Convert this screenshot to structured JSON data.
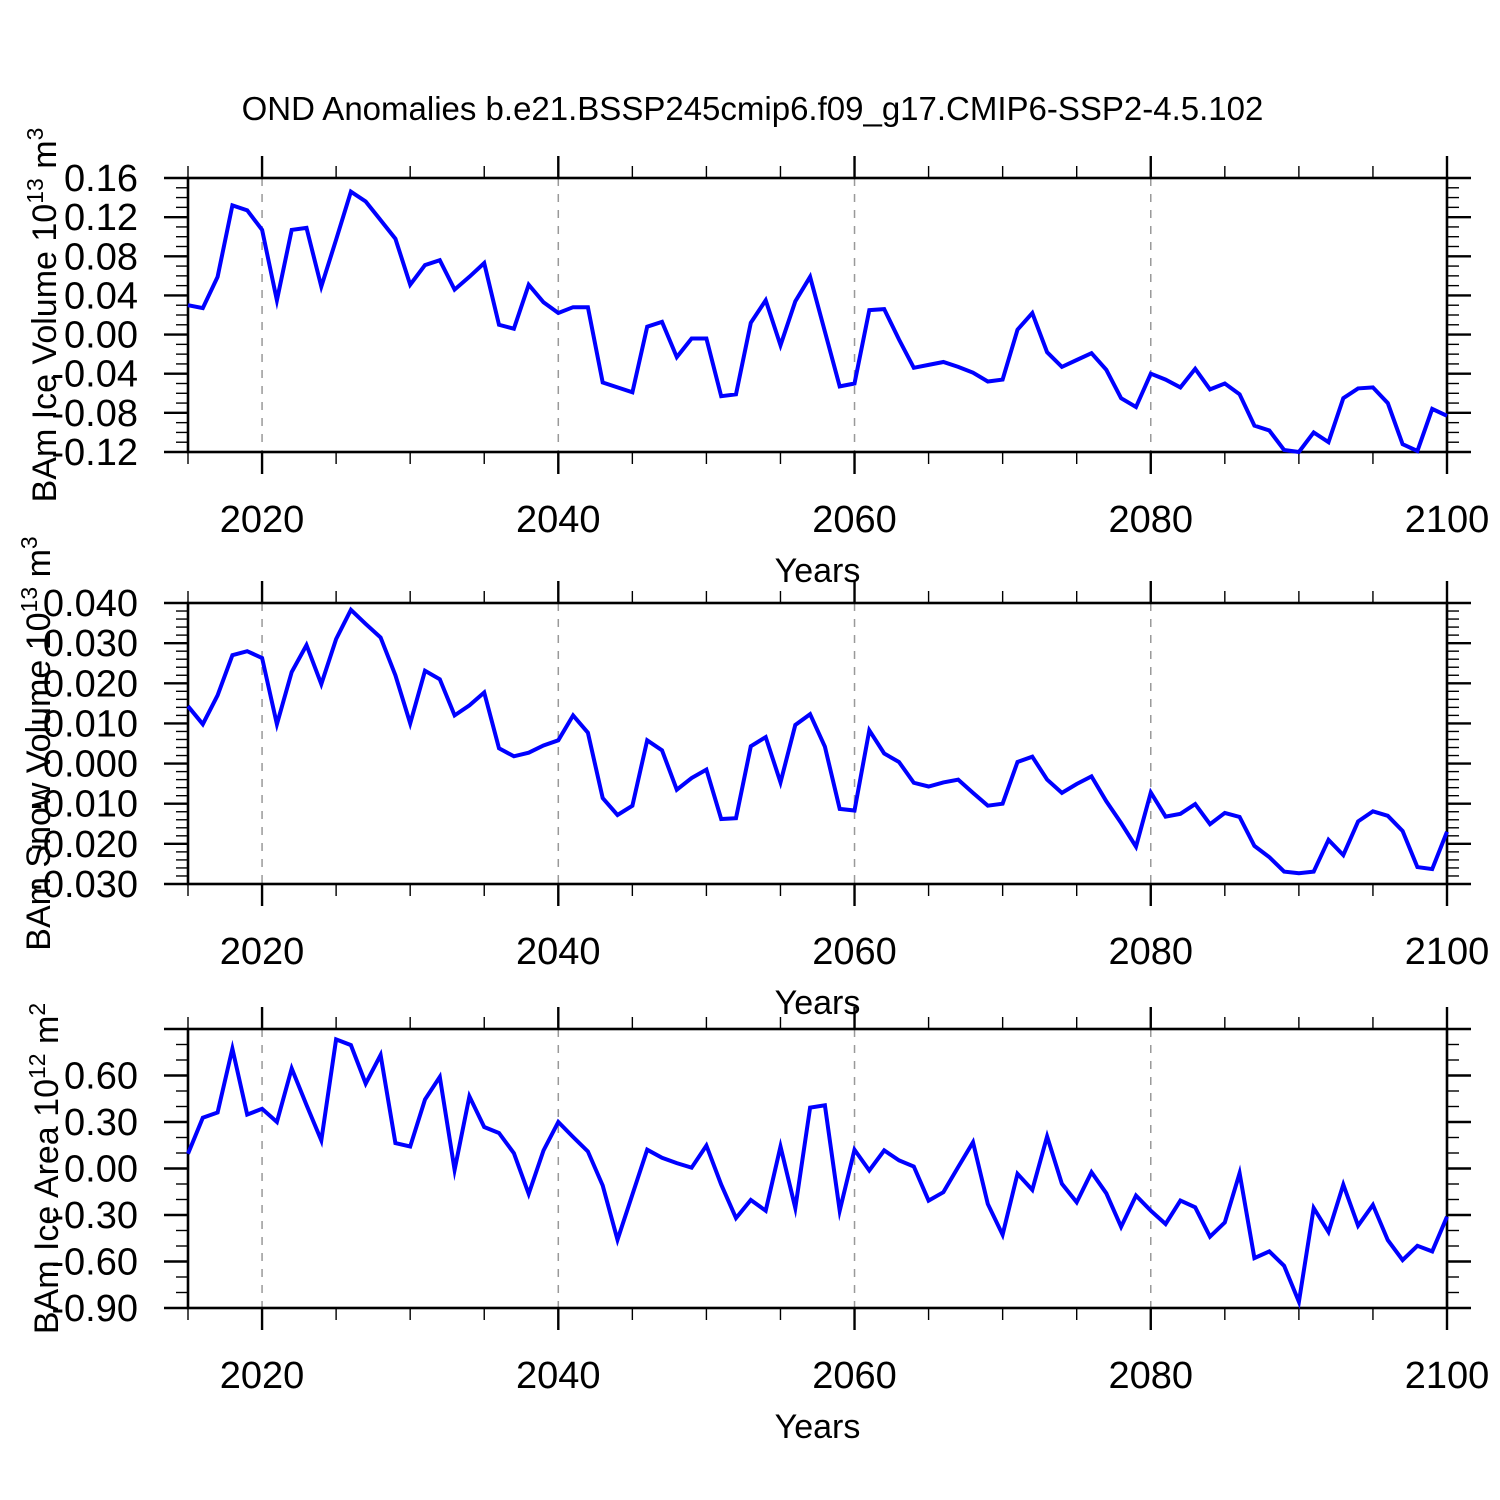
{
  "title": "OND Anomalies b.e21.BSSP245cmip6.f09_g17.CMIP6-SSP2-4.5.102",
  "colors": {
    "line": "#0000ff",
    "grid": "#999999",
    "axis": "#000000"
  },
  "x_axis": {
    "label": "Years",
    "tick_years": [
      2020,
      2040,
      2060,
      2080,
      2100
    ],
    "tick_labels": [
      "2020",
      "2040",
      "2060",
      "2080",
      "2100"
    ],
    "minor_step": 5,
    "grid_years": [
      2020,
      2040,
      2060,
      2080
    ],
    "range": [
      2015,
      2100
    ]
  },
  "years": [
    2015,
    2016,
    2017,
    2018,
    2019,
    2020,
    2021,
    2022,
    2023,
    2024,
    2025,
    2026,
    2027,
    2028,
    2029,
    2030,
    2031,
    2032,
    2033,
    2034,
    2035,
    2036,
    2037,
    2038,
    2039,
    2040,
    2041,
    2042,
    2043,
    2044,
    2045,
    2046,
    2047,
    2048,
    2049,
    2050,
    2051,
    2052,
    2053,
    2054,
    2055,
    2056,
    2057,
    2058,
    2059,
    2060,
    2061,
    2062,
    2063,
    2064,
    2065,
    2066,
    2067,
    2068,
    2069,
    2070,
    2071,
    2072,
    2073,
    2074,
    2075,
    2076,
    2077,
    2078,
    2079,
    2080,
    2081,
    2082,
    2083,
    2084,
    2085,
    2086,
    2087,
    2088,
    2089,
    2090,
    2091,
    2092,
    2093,
    2094,
    2095,
    2096,
    2097,
    2098,
    2099,
    2100
  ],
  "chart_data": [
    {
      "type": "line",
      "name": "ice-volume",
      "title": "",
      "xlabel": "Years",
      "ylabel": "BAm Ice Volume 10¹³ m³",
      "ylabel_parts": [
        {
          "t": "BAm Ice Volume 10"
        },
        {
          "t": "13",
          "sup": true
        },
        {
          "t": " m"
        },
        {
          "t": "3",
          "sup": true
        }
      ],
      "ylim": [
        -0.12,
        0.16
      ],
      "yticks": [
        0.16,
        0.12,
        0.08,
        0.04,
        0.0,
        -0.04,
        -0.08,
        -0.12
      ],
      "ytick_labels": [
        "0.16",
        "0.12",
        "0.08",
        "0.04",
        "0.00",
        "-0.04",
        "-0.08",
        "-0.12"
      ],
      "y_minor_step": 0.01,
      "values": [
        0.03,
        0.027,
        0.059,
        0.132,
        0.127,
        0.107,
        0.035,
        0.107,
        0.109,
        0.049,
        0.097,
        0.146,
        0.136,
        0.117,
        0.098,
        0.051,
        0.071,
        0.076,
        0.046,
        0.059,
        0.073,
        0.01,
        0.006,
        0.051,
        0.033,
        0.022,
        0.028,
        0.028,
        -0.049,
        -0.054,
        -0.059,
        0.008,
        0.013,
        -0.023,
        -0.004,
        -0.004,
        -0.063,
        -0.061,
        0.012,
        0.035,
        -0.011,
        0.034,
        0.059,
        0.003,
        -0.053,
        -0.05,
        0.025,
        0.026,
        -0.005,
        -0.034,
        -0.031,
        -0.028,
        -0.033,
        -0.039,
        -0.048,
        -0.046,
        0.005,
        0.022,
        -0.018,
        -0.033,
        -0.026,
        -0.019,
        -0.036,
        -0.065,
        -0.074,
        -0.04,
        -0.046,
        -0.054,
        -0.035,
        -0.056,
        -0.05,
        -0.061,
        -0.093,
        -0.098,
        -0.118,
        -0.12,
        -0.1,
        -0.11,
        -0.065,
        -0.055,
        -0.054,
        -0.07,
        -0.112,
        -0.119,
        -0.076,
        -0.083
      ]
    },
    {
      "type": "line",
      "name": "snow-volume",
      "title": "",
      "xlabel": "Years",
      "ylabel": "BAm Snow Volume 10¹³ m³",
      "ylabel_parts": [
        {
          "t": "BAm Snow Volume 10"
        },
        {
          "t": "13",
          "sup": true
        },
        {
          "t": " m"
        },
        {
          "t": "3",
          "sup": true
        }
      ],
      "ylim": [
        -0.03,
        0.04
      ],
      "yticks": [
        0.04,
        0.03,
        0.02,
        0.01,
        0.0,
        -0.01,
        -0.02,
        -0.03
      ],
      "ytick_labels": [
        "0.040",
        "0.030",
        "0.020",
        "0.010",
        "0.000",
        "-0.010",
        "-0.020",
        "-0.030"
      ],
      "y_minor_step": 0.002,
      "values": [
        0.0143,
        0.0098,
        0.017,
        0.027,
        0.028,
        0.0263,
        0.0098,
        0.0228,
        0.0295,
        0.0198,
        0.031,
        0.0383,
        0.0348,
        0.0314,
        0.022,
        0.01,
        0.0231,
        0.021,
        0.012,
        0.0145,
        0.0177,
        0.0038,
        0.0018,
        0.0027,
        0.0045,
        0.0058,
        0.012,
        0.0077,
        -0.0086,
        -0.0128,
        -0.0105,
        0.0058,
        0.0033,
        -0.0065,
        -0.0036,
        -0.0015,
        -0.0138,
        -0.0136,
        0.0043,
        0.0066,
        -0.0047,
        0.0096,
        0.0123,
        0.0042,
        -0.0113,
        -0.0117,
        0.0083,
        0.0025,
        0.0004,
        -0.0048,
        -0.0057,
        -0.0047,
        -0.004,
        -0.0073,
        -0.0105,
        -0.01,
        0.0004,
        0.0017,
        -0.004,
        -0.0073,
        -0.0051,
        -0.0032,
        -0.0094,
        -0.0148,
        -0.0207,
        -0.0072,
        -0.0132,
        -0.0125,
        -0.0101,
        -0.0151,
        -0.0123,
        -0.0133,
        -0.0205,
        -0.0233,
        -0.0269,
        -0.0273,
        -0.0269,
        -0.019,
        -0.0228,
        -0.0144,
        -0.0119,
        -0.013,
        -0.0168,
        -0.0258,
        -0.0263,
        -0.017
      ]
    },
    {
      "type": "line",
      "name": "ice-area",
      "title": "",
      "xlabel": "Years",
      "ylabel": "BAm Ice Area 10¹² m²",
      "ylabel_parts": [
        {
          "t": "BAm Ice Area 10"
        },
        {
          "t": "12",
          "sup": true
        },
        {
          "t": " m"
        },
        {
          "t": "2",
          "sup": true
        }
      ],
      "ylim": [
        -0.9,
        0.9
      ],
      "yticks": [
        0.9,
        0.6,
        0.3,
        0.0,
        -0.3,
        -0.6,
        -0.9
      ],
      "ytick_labels": [
        "",
        "0.60",
        "0.30",
        "0.00",
        "-0.30",
        "-0.60",
        "-0.90"
      ],
      "y_minor_step": 0.1,
      "values": [
        0.095,
        0.328,
        0.361,
        0.773,
        0.348,
        0.385,
        0.3,
        0.645,
        0.41,
        0.181,
        0.833,
        0.796,
        0.548,
        0.732,
        0.164,
        0.142,
        0.445,
        0.591,
        -0.009,
        0.466,
        0.268,
        0.229,
        0.099,
        -0.164,
        0.116,
        0.3,
        0.203,
        0.11,
        -0.11,
        -0.46,
        -0.168,
        0.121,
        0.069,
        0.035,
        0.005,
        0.148,
        -0.104,
        -0.32,
        -0.203,
        -0.272,
        0.142,
        -0.255,
        0.393,
        0.408,
        -0.272,
        0.121,
        -0.013,
        0.117,
        0.052,
        0.013,
        -0.207,
        -0.153,
        0.01,
        0.17,
        -0.229,
        -0.427,
        -0.034,
        -0.138,
        0.207,
        -0.099,
        -0.218,
        -0.024,
        -0.16,
        -0.376,
        -0.175,
        -0.272,
        -0.358,
        -0.207,
        -0.25,
        -0.44,
        -0.348,
        -0.03,
        -0.578,
        -0.535,
        -0.628,
        -0.86,
        -0.255,
        -0.41,
        -0.104,
        -0.369,
        -0.235,
        -0.462,
        -0.591,
        -0.499,
        -0.535,
        -0.311
      ]
    }
  ]
}
